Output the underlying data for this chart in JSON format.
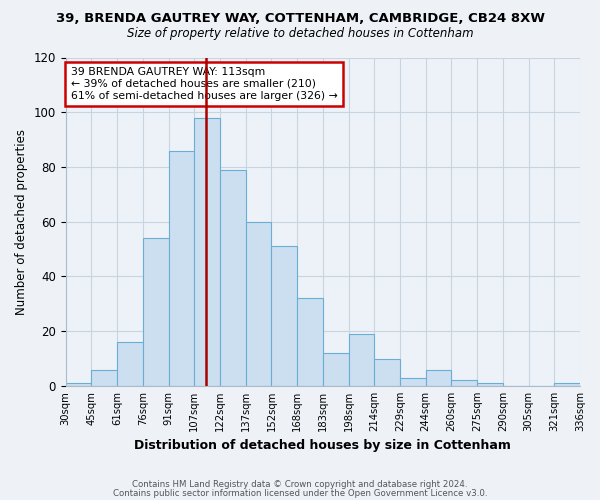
{
  "title1": "39, BRENDA GAUTREY WAY, COTTENHAM, CAMBRIDGE, CB24 8XW",
  "title2": "Size of property relative to detached houses in Cottenham",
  "xlabel": "Distribution of detached houses by size in Cottenham",
  "ylabel": "Number of detached properties",
  "bin_labels": [
    "30sqm",
    "45sqm",
    "61sqm",
    "76sqm",
    "91sqm",
    "107sqm",
    "122sqm",
    "137sqm",
    "152sqm",
    "168sqm",
    "183sqm",
    "198sqm",
    "214sqm",
    "229sqm",
    "244sqm",
    "260sqm",
    "275sqm",
    "290sqm",
    "305sqm",
    "321sqm",
    "336sqm"
  ],
  "bar_heights": [
    1,
    6,
    16,
    54,
    86,
    98,
    79,
    60,
    51,
    32,
    12,
    19,
    10,
    3,
    6,
    2,
    1,
    0,
    0,
    1
  ],
  "bar_color": "#ccdff0",
  "bar_edge_color": "#6aaed6",
  "vline_x": 5.45,
  "vline_color": "#aa0000",
  "annotation_text": "39 BRENDA GAUTREY WAY: 113sqm\n← 39% of detached houses are smaller (210)\n61% of semi-detached houses are larger (326) →",
  "annotation_box_color": "#ffffff",
  "annotation_box_edge": "#cc0000",
  "ylim": [
    0,
    120
  ],
  "yticks": [
    0,
    20,
    40,
    60,
    80,
    100,
    120
  ],
  "footer1": "Contains HM Land Registry data © Crown copyright and database right 2024.",
  "footer2": "Contains public sector information licensed under the Open Government Licence v3.0.",
  "bg_color": "#eef2f7",
  "plot_bg_color": "#edf2f8",
  "grid_color": "#c8d4e0"
}
